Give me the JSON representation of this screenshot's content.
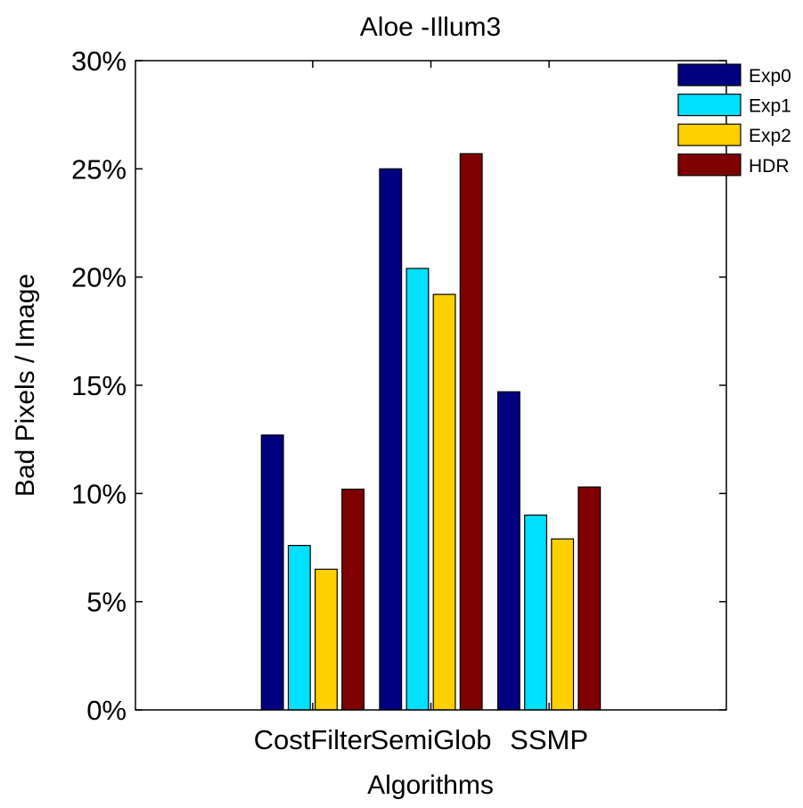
{
  "chart_data": {
    "type": "bar",
    "title": "Aloe -Illum3",
    "xlabel": "Algorithms",
    "ylabel": "Bad Pixels / Image",
    "categories": [
      "CostFilter",
      "SemiGlob",
      "SSMP"
    ],
    "series": [
      {
        "name": "Exp0",
        "color": "#000080",
        "values": [
          12.7,
          25.0,
          14.7
        ]
      },
      {
        "name": "Exp1",
        "color": "#00e0ff",
        "values": [
          7.6,
          20.4,
          9.0
        ]
      },
      {
        "name": "Exp2",
        "color": "#ffd000",
        "values": [
          6.5,
          19.2,
          7.9
        ]
      },
      {
        "name": "HDR",
        "color": "#7f0000",
        "values": [
          10.2,
          25.7,
          10.3
        ]
      }
    ],
    "ylim": [
      0,
      30
    ],
    "yticks": [
      0,
      5,
      10,
      15,
      20,
      25,
      30
    ],
    "ytick_labels": [
      "0%",
      "5%",
      "10%",
      "15%",
      "20%",
      "25%",
      "30%"
    ],
    "grid": false,
    "legend_position": "top-right"
  }
}
